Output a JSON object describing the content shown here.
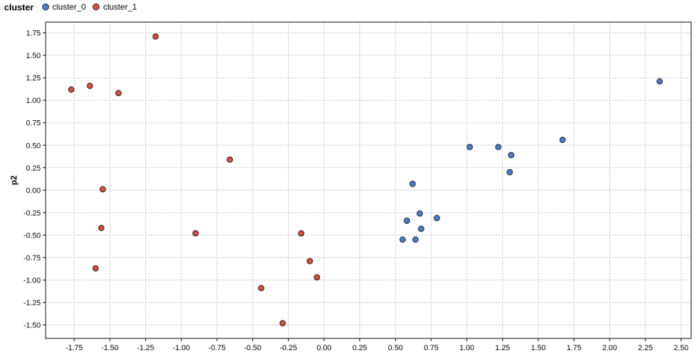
{
  "chart_data": {
    "type": "scatter",
    "legend_title": "cluster",
    "legend_placement": "top-left",
    "xlabel": "",
    "ylabel": "p2",
    "xlim": [
      -1.95,
      2.57
    ],
    "ylim": [
      -1.65,
      1.87
    ],
    "grid": true,
    "x_ticks": [
      -1.75,
      -1.5,
      -1.25,
      -1.0,
      -0.75,
      -0.5,
      -0.25,
      0.0,
      0.25,
      0.5,
      0.75,
      1.0,
      1.25,
      1.5,
      1.75,
      2.0,
      2.25,
      2.5
    ],
    "x_tick_labels": [
      "-1.75",
      "-1.50",
      "-1.25",
      "-1.00",
      "-0.75",
      "-0.50",
      "-0.25",
      "0.00",
      "0.25",
      "0.50",
      "0.75",
      "1.00",
      "1.25",
      "1.50",
      "1.75",
      "2.00",
      "2.25",
      "2.50"
    ],
    "y_ticks": [
      1.75,
      1.5,
      1.25,
      1.0,
      0.75,
      0.5,
      0.25,
      0.0,
      -0.25,
      -0.5,
      -0.75,
      -1.0,
      -1.25,
      -1.5
    ],
    "y_tick_labels": [
      "1.75",
      "1.50",
      "1.25",
      "1.00",
      "0.75",
      "0.50",
      "0.25",
      "0.00",
      "-0.25",
      "-0.50",
      "-0.75",
      "-1.00",
      "-1.25",
      "-1.50"
    ],
    "series": [
      {
        "name": "cluster_0",
        "color": "#4a7fd0",
        "points": [
          {
            "x": 2.35,
            "y": 1.21
          },
          {
            "x": 1.67,
            "y": 0.56
          },
          {
            "x": 1.02,
            "y": 0.48
          },
          {
            "x": 1.22,
            "y": 0.48
          },
          {
            "x": 1.31,
            "y": 0.39
          },
          {
            "x": 1.3,
            "y": 0.2
          },
          {
            "x": 0.62,
            "y": 0.07
          },
          {
            "x": 0.67,
            "y": -0.26
          },
          {
            "x": 0.79,
            "y": -0.31
          },
          {
            "x": 0.58,
            "y": -0.34
          },
          {
            "x": 0.68,
            "y": -0.43
          },
          {
            "x": 0.55,
            "y": -0.55
          },
          {
            "x": 0.64,
            "y": -0.55
          }
        ]
      },
      {
        "name": "cluster_1",
        "color": "#d9503a",
        "points": [
          {
            "x": -1.18,
            "y": 1.71
          },
          {
            "x": -1.77,
            "y": 1.12
          },
          {
            "x": -1.64,
            "y": 1.16
          },
          {
            "x": -1.44,
            "y": 1.08
          },
          {
            "x": -0.66,
            "y": 0.34
          },
          {
            "x": -1.55,
            "y": 0.01
          },
          {
            "x": -1.56,
            "y": -0.42
          },
          {
            "x": -0.9,
            "y": -0.48
          },
          {
            "x": -0.16,
            "y": -0.48
          },
          {
            "x": -1.6,
            "y": -0.87
          },
          {
            "x": -0.1,
            "y": -0.79
          },
          {
            "x": -0.05,
            "y": -0.97
          },
          {
            "x": -0.44,
            "y": -1.09
          },
          {
            "x": -0.29,
            "y": -1.48
          }
        ]
      }
    ]
  }
}
